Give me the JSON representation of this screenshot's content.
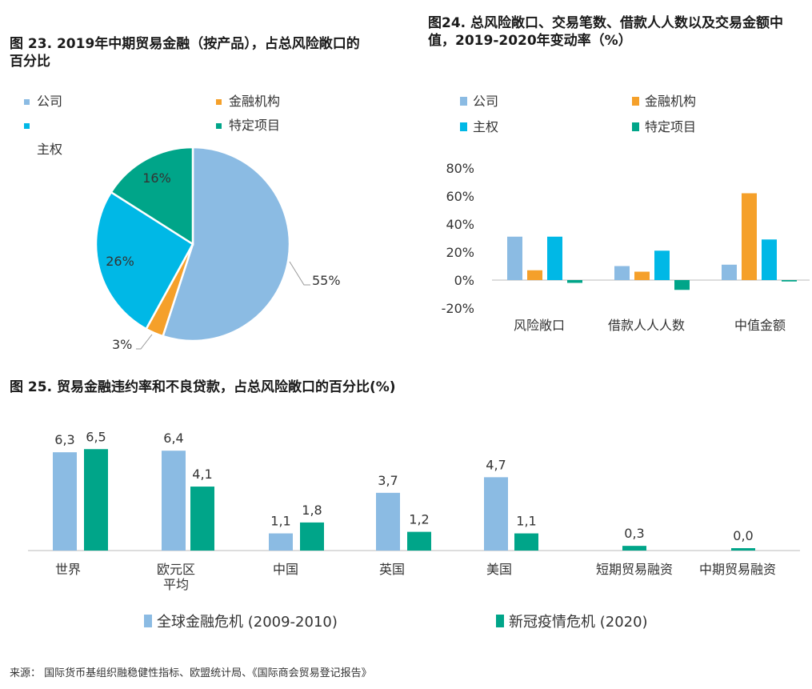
{
  "colors": {
    "light_blue": "#8bbbe3",
    "orange": "#f5a02a",
    "cyan": "#00b8e6",
    "teal": "#00a589"
  },
  "chart_data": [
    {
      "type": "pie",
      "title": "图 23. 2019年中期贸易金融（按产品），占总风险敞口的百分比",
      "legend": [
        "公司",
        "金融机构",
        "主权",
        "特定项目"
      ],
      "slices": [
        {
          "name": "公司",
          "value": 55,
          "label": "55%",
          "color": "#8bbbe3"
        },
        {
          "name": "金融机构",
          "value": 3,
          "label": "3%",
          "color": "#f5a02a"
        },
        {
          "name": "主权",
          "value": 26,
          "label": "26%",
          "color": "#00b8e6"
        },
        {
          "name": "特定项目",
          "value": 16,
          "label": "16%",
          "color": "#00a589"
        }
      ]
    },
    {
      "type": "bar",
      "title": "图24. 总风险敞口、交易笔数、借款人人数以及交易金额中值，2019-2020年变动率（%）",
      "categories": [
        "风险敞口",
        "借款人人人数",
        "中值金额"
      ],
      "yticks": [
        "80%",
        "60%",
        "40%",
        "20%",
        "0%",
        "-20%"
      ],
      "ylim": [
        -20,
        80
      ],
      "series": [
        {
          "name": "公司",
          "color": "#8bbbe3",
          "values": [
            31,
            10,
            11
          ]
        },
        {
          "name": "金融机构",
          "color": "#f5a02a",
          "values": [
            7,
            6,
            62
          ]
        },
        {
          "name": "主权",
          "color": "#00b8e6",
          "values": [
            31,
            21,
            29
          ]
        },
        {
          "name": "特定项目",
          "color": "#00a589",
          "values": [
            -2,
            -7,
            -1
          ]
        }
      ]
    },
    {
      "type": "bar",
      "title": "图 25. 贸易金融违约率和不良贷款，占总风险敞口的百分比(%)",
      "categories": [
        "世界",
        "欧元区\n平均",
        "中国",
        "英国",
        "美国",
        "短期贸易融资",
        "中期贸易融资"
      ],
      "series": [
        {
          "name": "全球金融危机 (2009-2010)",
          "color": "#8bbbe3",
          "values": [
            6.3,
            6.4,
            1.1,
            3.7,
            4.7,
            null,
            null
          ],
          "labels": [
            "6,3",
            "6,4",
            "1,1",
            "3,7",
            "4,7",
            "",
            ""
          ]
        },
        {
          "name": "新冠疫情危机 (2020)",
          "color": "#00a589",
          "values": [
            6.5,
            4.1,
            1.8,
            1.2,
            1.1,
            0.3,
            0.0
          ],
          "labels": [
            "6,5",
            "4,1",
            "1,8",
            "1,2",
            "1,1",
            "0,3",
            "0,0"
          ]
        }
      ]
    }
  ],
  "source": "来源：  国际货币基组织融稳健性指标、欧盟统计局、《国际商会贸易登记报告》"
}
